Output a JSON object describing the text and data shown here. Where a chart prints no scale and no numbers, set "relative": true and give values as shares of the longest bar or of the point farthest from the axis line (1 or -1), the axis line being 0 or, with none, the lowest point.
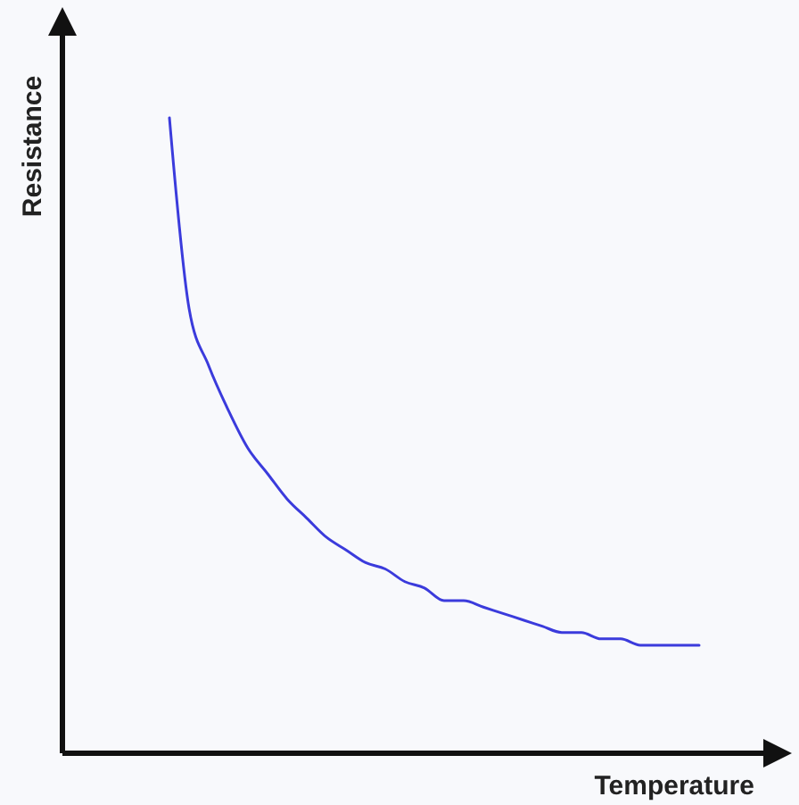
{
  "chart_data": {
    "type": "line",
    "relative": true,
    "xlabel": "Temperature",
    "ylabel": "Resistance",
    "categories": [
      null,
      null,
      null,
      null,
      null,
      null,
      null,
      null,
      null,
      null,
      null,
      null,
      null,
      null,
      null,
      null,
      null,
      null,
      null,
      null,
      null,
      null,
      null,
      null,
      null,
      null,
      null,
      null
    ],
    "series": [
      {
        "color": "#3b3bdc",
        "values": [
          1,
          0.7,
          0.61,
          0.54,
          0.48,
          0.44,
          0.4,
          0.37,
          0.34,
          0.32,
          0.3,
          0.29,
          0.27,
          0.26,
          0.24,
          0.24,
          0.23,
          0.22,
          0.21,
          0.2,
          0.19,
          0.19,
          0.18,
          0.18,
          0.17,
          0.17,
          0.17,
          0.17
        ]
      }
    ]
  }
}
